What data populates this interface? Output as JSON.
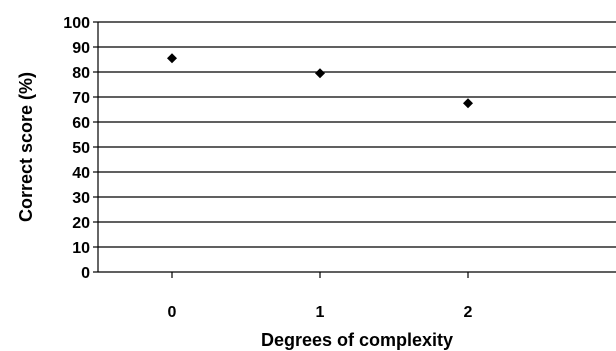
{
  "chart_data": {
    "type": "scatter",
    "title": "",
    "xlabel": "Degrees of complexity",
    "ylabel": "Correct score (%)",
    "x": [
      0,
      1,
      2
    ],
    "y": [
      85.5,
      79.5,
      67.5
    ],
    "x_tick_labels": [
      "0",
      "1",
      "2"
    ],
    "y_tick_labels": [
      "0",
      "10",
      "20",
      "30",
      "40",
      "50",
      "60",
      "70",
      "80",
      "90",
      "100"
    ],
    "ylim": [
      0,
      100
    ],
    "grid": true,
    "legend": "none",
    "marker": "diamond",
    "marker_color": "#000000"
  }
}
